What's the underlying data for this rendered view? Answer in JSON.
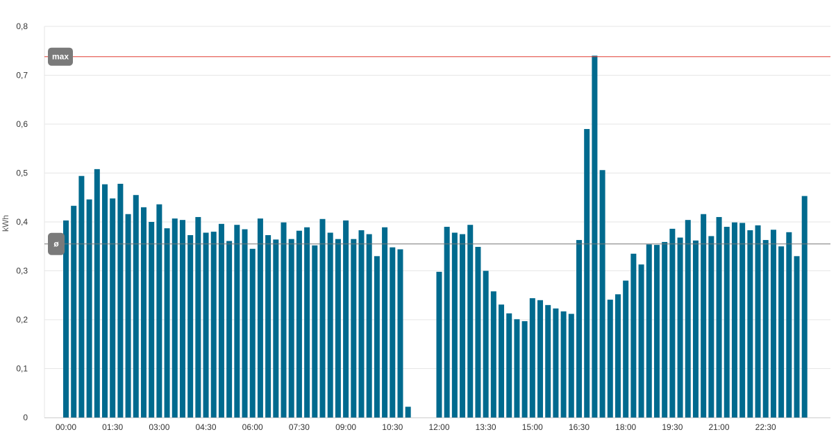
{
  "chart_data": {
    "type": "bar",
    "ylabel": "kWh",
    "ylim": [
      0,
      0.8
    ],
    "yticks": [
      "0",
      "0,1",
      "0,2",
      "0,3",
      "0,4",
      "0,5",
      "0,6",
      "0,7",
      "0,8"
    ],
    "xticks": [
      "00:00",
      "01:30",
      "03:00",
      "04:30",
      "06:00",
      "07:30",
      "09:00",
      "10:30",
      "12:00",
      "13:30",
      "15:00",
      "16:30",
      "18:00",
      "19:30",
      "21:00",
      "22:30"
    ],
    "interval_minutes": 15,
    "grid": true,
    "bar_color": "#006a8e",
    "values": [
      0.403,
      0.433,
      0.494,
      0.446,
      0.508,
      0.477,
      0.448,
      0.478,
      0.416,
      0.455,
      0.43,
      0.4,
      0.436,
      0.387,
      0.407,
      0.404,
      0.373,
      0.41,
      0.378,
      0.38,
      0.396,
      0.361,
      0.394,
      0.385,
      0.345,
      0.407,
      0.373,
      0.364,
      0.399,
      0.365,
      0.382,
      0.389,
      0.352,
      0.406,
      0.378,
      0.365,
      0.403,
      0.365,
      0.383,
      0.375,
      0.33,
      0.389,
      0.348,
      0.344,
      0.022,
      null,
      null,
      null,
      0.298,
      0.39,
      0.378,
      0.375,
      0.394,
      0.349,
      0.3,
      0.258,
      0.231,
      0.213,
      0.201,
      0.197,
      0.244,
      0.24,
      0.23,
      0.223,
      0.217,
      0.212,
      0.363,
      0.59,
      0.74,
      0.506,
      0.241,
      0.252,
      0.28,
      0.335,
      0.313,
      0.354,
      0.353,
      0.359,
      0.386,
      0.368,
      0.404,
      0.362,
      0.416,
      0.371,
      0.41,
      0.39,
      0.399,
      0.398,
      0.383,
      0.393,
      0.363,
      0.384,
      0.35,
      0.379,
      0.33,
      0.453
    ],
    "reference_lines": [
      {
        "label": "max",
        "value": 0.738,
        "color": "#e03c31"
      },
      {
        "label": "ø",
        "value": 0.355,
        "color": "#777777"
      }
    ]
  }
}
